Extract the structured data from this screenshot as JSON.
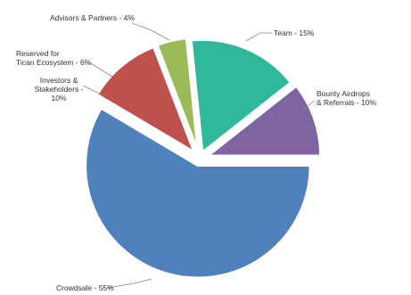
{
  "chart_data": {
    "type": "pie",
    "slices": [
      {
        "label": "Crowdsale - 55%",
        "value": 55,
        "color": "#4f81bd"
      },
      {
        "label": "Investors & Stakeholders - 10%",
        "value": 10,
        "color": "#c0504d"
      },
      {
        "label": "Advisors & Partners - 4%",
        "value": 4,
        "color": "#9bbb59"
      },
      {
        "label": "Team - 15%",
        "value": 15,
        "color": "#2fb99a"
      },
      {
        "label": "Bounty Airdrops & Referrals - 10%",
        "value": 10,
        "color": "#8064a2"
      }
    ],
    "annotations": [
      {
        "label": "Reserved for Tican Ecosystem - 6%"
      }
    ],
    "legend": "none"
  }
}
